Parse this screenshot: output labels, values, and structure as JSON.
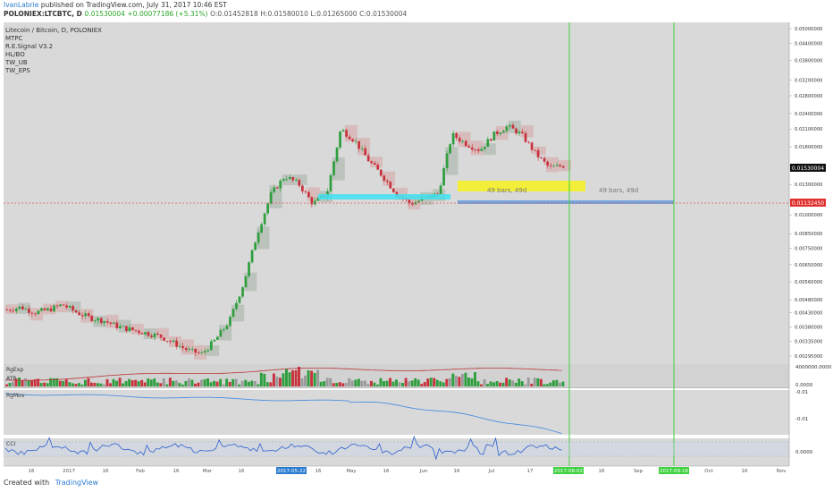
{
  "header": {
    "user": "IvanLabrie",
    "published": "published on TradingView.com, July 31, 2017 10:46 EST",
    "symbol": "POLONIEX:LTCBTC, D",
    "last": "0.01530004",
    "change": "+0.00077186 (+5.31%)",
    "ohlc": [
      "O:0.01452818",
      "H:0.01580010",
      "L:0.01265000",
      "C:0.01530004"
    ]
  },
  "indicators": [
    "Litecoin / Bitcoin, D, POLONIEX",
    "MTPC",
    "R.E.Signal V3.2",
    "HL/BO",
    "TW_UB",
    "TW_EPS"
  ],
  "pane_labels": {
    "rgexp": "RgExp",
    "atr": "ATR",
    "rgmov": "RgMov",
    "cci": "CCI"
  },
  "projection_labels": [
    "49 bars, 49d",
    "49 bars, 49d"
  ],
  "price_badges": {
    "current": "0.01530004",
    "level": "0.01132450"
  },
  "sub_axis": {
    "rgexp_top": "4000000.0000",
    "rgexp_bottom": "0.0000",
    "rgmov_a": "-0.01",
    "rgmov_b": "-0.01",
    "cci": "0.0000"
  },
  "date_badges": [
    "2017-05-22",
    "2017-08-02",
    "2017-09-16"
  ],
  "footer": {
    "created": "Created with",
    "brand": "TradingView"
  },
  "colors": {
    "up": "#2e9e3e",
    "down": "#c8323c",
    "pane_bg": "#d9d9d9",
    "cyan": "#40e0f0",
    "yellow": "#f2ee3a",
    "green_line": "#3fd13f",
    "blue_line": "#4a8fe0"
  },
  "chart_data": {
    "type": "candlestick",
    "y_axis_labels": [
      "0.05000000",
      "0.04400000",
      "0.03800000",
      "0.03200000",
      "0.02800000",
      "0.02400000",
      "0.02100000",
      "0.01800000",
      "0.01530004",
      "0.01300000",
      "0.01132450",
      "0.01000000",
      "0.00850000",
      "0.00750000",
      "0.00650000",
      "0.00560000",
      "0.00480000",
      "0.00430000",
      "0.00380000",
      "0.00335000",
      "0.00295000"
    ],
    "x_axis_labels": [
      "16",
      "2017",
      "16",
      "Feb",
      "16",
      "Mar",
      "16",
      "2017-05-22",
      "16",
      "May",
      "16",
      "Jun",
      "16",
      "Jul",
      "17",
      "2017-08-02",
      "16",
      "Sep",
      "2017-09-16",
      "Oct",
      "16",
      "Nov"
    ],
    "approx_close_series": [
      0.0044,
      0.0045,
      0.0043,
      0.0044,
      0.0046,
      0.0043,
      0.0041,
      0.004,
      0.0038,
      0.0037,
      0.0036,
      0.0035,
      0.0033,
      0.0031,
      0.003,
      0.0034,
      0.004,
      0.0055,
      0.0085,
      0.012,
      0.014,
      0.013,
      0.011,
      0.012,
      0.021,
      0.019,
      0.016,
      0.014,
      0.012,
      0.011,
      0.0115,
      0.012,
      0.02,
      0.0185,
      0.0175,
      0.02,
      0.0215,
      0.02,
      0.017,
      0.015,
      0.0153
    ],
    "current_price": 0.01530004,
    "support_level": 0.0113245
  }
}
